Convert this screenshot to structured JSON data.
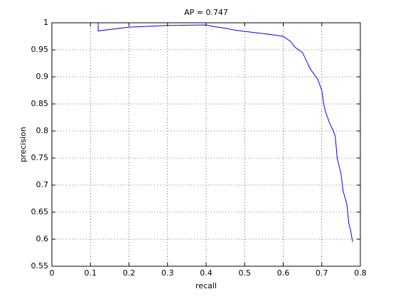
{
  "chart_data": {
    "type": "line",
    "title": "AP = 0.747",
    "x_label": "recall",
    "y_label": "precision",
    "x": [
      0.12,
      0.12,
      0.2,
      0.3,
      0.4,
      0.42,
      0.45,
      0.47,
      0.5,
      0.55,
      0.58,
      0.6,
      0.62,
      0.63,
      0.65,
      0.66,
      0.67,
      0.68,
      0.69,
      0.7,
      0.705,
      0.71,
      0.72,
      0.73,
      0.735,
      0.74,
      0.75,
      0.755,
      0.765,
      0.77,
      0.775,
      0.78
    ],
    "series": [
      {
        "color": "#0000ff",
        "values": [
          1.0,
          0.985,
          0.992,
          0.995,
          0.996,
          0.993,
          0.99,
          0.987,
          0.984,
          0.98,
          0.977,
          0.975,
          0.965,
          0.955,
          0.945,
          0.93,
          0.915,
          0.905,
          0.895,
          0.875,
          0.85,
          0.835,
          0.815,
          0.8,
          0.79,
          0.75,
          0.72,
          0.69,
          0.665,
          0.63,
          0.615,
          0.595
        ]
      }
    ],
    "xlim": [
      0,
      0.8
    ],
    "xticks": [
      0,
      0.1,
      0.2,
      0.3,
      0.4,
      0.5,
      0.6,
      0.7,
      0.8
    ],
    "ylim": [
      0.55,
      1
    ],
    "yticks": [
      0.55,
      0.6,
      0.65,
      0.7,
      0.75,
      0.8,
      0.85,
      0.9,
      0.95,
      1
    ],
    "grid": true
  }
}
